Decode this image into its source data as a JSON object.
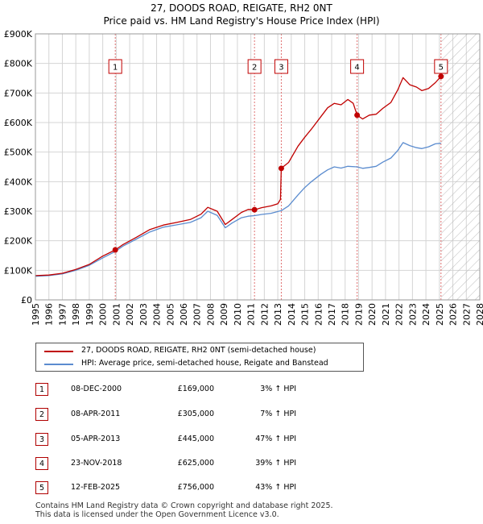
{
  "chart_data": {
    "type": "line",
    "title": "27, DOODS ROAD, REIGATE, RH2 0NT",
    "subtitle": "Price paid vs. HM Land Registry's House Price Index (HPI)",
    "xlim": [
      1995,
      2028
    ],
    "ylim": [
      0,
      900000
    ],
    "xticks": [
      "1995",
      "1996",
      "1997",
      "1998",
      "1999",
      "2000",
      "2001",
      "2002",
      "2003",
      "2004",
      "2005",
      "2006",
      "2007",
      "2008",
      "2009",
      "2010",
      "2011",
      "2012",
      "2013",
      "2014",
      "2015",
      "2016",
      "2017",
      "2018",
      "2019",
      "2020",
      "2021",
      "2022",
      "2023",
      "2024",
      "2025",
      "2026",
      "2027",
      "2028"
    ],
    "yticks": [
      {
        "value": 0,
        "label": "£0"
      },
      {
        "value": 100000,
        "label": "£100K"
      },
      {
        "value": 200000,
        "label": "£200K"
      },
      {
        "value": 300000,
        "label": "£300K"
      },
      {
        "value": 400000,
        "label": "£400K"
      },
      {
        "value": 500000,
        "label": "£500K"
      },
      {
        "value": 600000,
        "label": "£600K"
      },
      {
        "value": 700000,
        "label": "£700K"
      },
      {
        "value": 800000,
        "label": "£800K"
      },
      {
        "value": 900000,
        "label": "£900K"
      }
    ],
    "grid": true,
    "future_hatch_from": 2025.12,
    "series": [
      {
        "name": "27, DOODS ROAD, REIGATE, RH2 0NT (semi-detached house)",
        "color": "#c00000",
        "points": [
          [
            1995.0,
            82000
          ],
          [
            1996.0,
            84000
          ],
          [
            1997.0,
            90000
          ],
          [
            1998.0,
            103000
          ],
          [
            1999.0,
            120000
          ],
          [
            2000.0,
            148000
          ],
          [
            2000.93,
            169000
          ],
          [
            2001.5,
            187000
          ],
          [
            2002.5,
            212000
          ],
          [
            2003.5,
            238000
          ],
          [
            2004.5,
            253000
          ],
          [
            2005.5,
            262000
          ],
          [
            2006.5,
            272000
          ],
          [
            2007.3,
            290000
          ],
          [
            2007.8,
            313000
          ],
          [
            2008.5,
            300000
          ],
          [
            2009.1,
            255000
          ],
          [
            2009.6,
            272000
          ],
          [
            2010.3,
            296000
          ],
          [
            2010.8,
            306000
          ],
          [
            2011.27,
            305000
          ],
          [
            2011.8,
            312000
          ],
          [
            2012.5,
            318000
          ],
          [
            2013.0,
            325000
          ],
          [
            2013.2,
            340000
          ],
          [
            2013.26,
            445000
          ],
          [
            2013.8,
            465000
          ],
          [
            2014.5,
            520000
          ],
          [
            2015.0,
            550000
          ],
          [
            2015.5,
            578000
          ],
          [
            2016.2,
            620000
          ],
          [
            2016.7,
            650000
          ],
          [
            2017.2,
            665000
          ],
          [
            2017.7,
            660000
          ],
          [
            2018.2,
            678000
          ],
          [
            2018.6,
            665000
          ],
          [
            2018.89,
            625000
          ],
          [
            2019.3,
            612000
          ],
          [
            2019.8,
            625000
          ],
          [
            2020.3,
            628000
          ],
          [
            2020.8,
            648000
          ],
          [
            2021.4,
            668000
          ],
          [
            2021.9,
            710000
          ],
          [
            2022.3,
            752000
          ],
          [
            2022.8,
            728000
          ],
          [
            2023.3,
            720000
          ],
          [
            2023.7,
            708000
          ],
          [
            2024.2,
            715000
          ],
          [
            2024.7,
            735000
          ],
          [
            2025.12,
            756000
          ]
        ]
      },
      {
        "name": "HPI: Average price, semi-detached house, Reigate and Banstead",
        "color": "#5b8ccf",
        "points": [
          [
            1995.0,
            80000
          ],
          [
            1996.0,
            82000
          ],
          [
            1997.0,
            88000
          ],
          [
            1998.0,
            100000
          ],
          [
            1999.0,
            117000
          ],
          [
            2000.0,
            142000
          ],
          [
            2000.93,
            164000
          ],
          [
            2001.5,
            182000
          ],
          [
            2002.5,
            206000
          ],
          [
            2003.5,
            230000
          ],
          [
            2004.5,
            246000
          ],
          [
            2005.5,
            254000
          ],
          [
            2006.5,
            262000
          ],
          [
            2007.3,
            278000
          ],
          [
            2007.8,
            300000
          ],
          [
            2008.5,
            286000
          ],
          [
            2009.1,
            244000
          ],
          [
            2009.6,
            260000
          ],
          [
            2010.3,
            278000
          ],
          [
            2010.8,
            283000
          ],
          [
            2011.27,
            285000
          ],
          [
            2011.8,
            289000
          ],
          [
            2012.5,
            293000
          ],
          [
            2013.26,
            302000
          ],
          [
            2013.8,
            318000
          ],
          [
            2014.5,
            355000
          ],
          [
            2015.0,
            380000
          ],
          [
            2015.5,
            400000
          ],
          [
            2016.2,
            425000
          ],
          [
            2016.7,
            440000
          ],
          [
            2017.2,
            450000
          ],
          [
            2017.7,
            446000
          ],
          [
            2018.2,
            452000
          ],
          [
            2018.89,
            450000
          ],
          [
            2019.3,
            445000
          ],
          [
            2019.8,
            448000
          ],
          [
            2020.3,
            452000
          ],
          [
            2020.8,
            466000
          ],
          [
            2021.4,
            480000
          ],
          [
            2021.9,
            505000
          ],
          [
            2022.3,
            532000
          ],
          [
            2022.8,
            522000
          ],
          [
            2023.3,
            515000
          ],
          [
            2023.7,
            512000
          ],
          [
            2024.2,
            518000
          ],
          [
            2024.7,
            528000
          ],
          [
            2025.12,
            530000
          ]
        ]
      }
    ],
    "sales": [
      {
        "num": "1",
        "x": 2000.93,
        "y": 169000
      },
      {
        "num": "2",
        "x": 2011.27,
        "y": 305000
      },
      {
        "num": "3",
        "x": 2013.26,
        "y": 445000
      },
      {
        "num": "4",
        "x": 2018.89,
        "y": 625000
      },
      {
        "num": "5",
        "x": 2025.12,
        "y": 756000
      }
    ]
  },
  "legend": {
    "property_label": "27, DOODS ROAD, REIGATE, RH2 0NT (semi-detached house)",
    "hpi_label": "HPI: Average price, semi-detached house, Reigate and Banstead",
    "property_color": "#c00000",
    "hpi_color": "#5b8ccf"
  },
  "table": [
    {
      "num": "1",
      "date": "08-DEC-2000",
      "price": "£169,000",
      "pct": "3% ↑ HPI"
    },
    {
      "num": "2",
      "date": "08-APR-2011",
      "price": "£305,000",
      "pct": "7% ↑ HPI"
    },
    {
      "num": "3",
      "date": "05-APR-2013",
      "price": "£445,000",
      "pct": "47% ↑ HPI"
    },
    {
      "num": "4",
      "date": "23-NOV-2018",
      "price": "£625,000",
      "pct": "39% ↑ HPI"
    },
    {
      "num": "5",
      "date": "12-FEB-2025",
      "price": "£756,000",
      "pct": "43% ↑ HPI"
    }
  ],
  "footer": {
    "line1": "Contains HM Land Registry data © Crown copyright and database right 2025.",
    "line2": "This data is licensed under the Open Government Licence v3.0."
  }
}
